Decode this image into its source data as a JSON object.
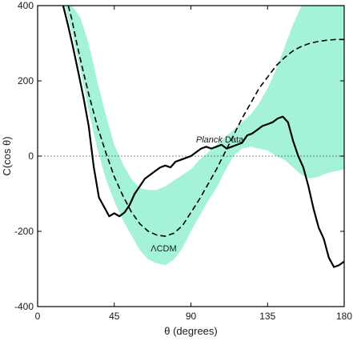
{
  "chart_data": {
    "type": "line",
    "xlabel": "θ (degrees)",
    "ylabel": "C(cos θ)",
    "xlim": [
      0,
      180
    ],
    "ylim": [
      -400,
      400
    ],
    "x_ticks": [
      0,
      45,
      90,
      135,
      180
    ],
    "y_ticks": [
      -400,
      -200,
      0,
      200,
      400
    ],
    "zero_reference_line": true,
    "grid": false,
    "series": [
      {
        "name": "ΛCDM",
        "style": "dashed",
        "color": "#000000",
        "x": [
          18,
          20,
          23,
          26,
          30,
          35,
          40,
          45,
          50,
          55,
          60,
          65,
          70,
          75,
          80,
          85,
          90,
          95,
          100,
          105,
          110,
          115,
          120,
          125,
          130,
          135,
          140,
          145,
          150,
          155,
          160,
          165,
          170,
          175,
          180
        ],
        "y": [
          400,
          365,
          300,
          240,
          165,
          80,
          10,
          -55,
          -105,
          -148,
          -180,
          -200,
          -210,
          -213,
          -205,
          -185,
          -150,
          -115,
          -75,
          -35,
          10,
          55,
          100,
          140,
          180,
          210,
          240,
          262,
          280,
          292,
          300,
          305,
          308,
          310,
          310
        ]
      },
      {
        "name": "Planck Data",
        "style": "solid",
        "color": "#000000",
        "x": [
          15,
          18,
          21,
          24,
          27,
          30,
          33,
          36,
          39,
          42,
          45,
          48,
          51,
          54,
          57,
          60,
          63,
          66,
          69,
          72,
          75,
          78,
          81,
          84,
          87,
          90,
          93,
          96,
          99,
          102,
          105,
          108,
          111,
          114,
          117,
          120,
          123,
          126,
          129,
          132,
          135,
          138,
          141,
          144,
          147,
          150,
          153,
          156,
          159,
          162,
          165,
          168,
          171,
          174,
          177,
          180
        ],
        "y": [
          400,
          345,
          285,
          220,
          155,
          80,
          -30,
          -110,
          -135,
          -160,
          -152,
          -160,
          -150,
          -130,
          -100,
          -80,
          -60,
          -50,
          -40,
          -30,
          -25,
          -30,
          -15,
          -10,
          -5,
          0,
          10,
          20,
          25,
          20,
          25,
          30,
          20,
          25,
          30,
          35,
          55,
          60,
          70,
          80,
          85,
          90,
          100,
          105,
          90,
          40,
          0,
          -30,
          -80,
          -140,
          -190,
          -220,
          -270,
          -295,
          -290,
          -280
        ]
      }
    ],
    "band": {
      "name": "ΛCDM variance",
      "color": "#a5f2db",
      "x": [
        16,
        20,
        25,
        30,
        35,
        40,
        45,
        50,
        55,
        60,
        65,
        70,
        75,
        80,
        85,
        90,
        95,
        100,
        105,
        110,
        115,
        120,
        125,
        130,
        135,
        140,
        145,
        150,
        155,
        160,
        165,
        170,
        175,
        180
      ],
      "upper": [
        400,
        400,
        370,
        300,
        200,
        110,
        30,
        -20,
        -60,
        -85,
        -90,
        -90,
        -80,
        -65,
        -50,
        -35,
        -10,
        10,
        30,
        50,
        70,
        90,
        110,
        140,
        180,
        230,
        290,
        350,
        400,
        400,
        400,
        400,
        400,
        400
      ],
      "lower": [
        400,
        330,
        230,
        120,
        20,
        -60,
        -120,
        -170,
        -210,
        -250,
        -275,
        -285,
        -290,
        -275,
        -245,
        -200,
        -160,
        -120,
        -85,
        -40,
        0,
        20,
        25,
        20,
        15,
        0,
        -10,
        -30,
        -50,
        -60,
        -55,
        -45,
        -40,
        -35
      ]
    },
    "annotations": [
      {
        "text": "ΛCDM",
        "x": 74,
        "y": -245
      },
      {
        "text": "Planck Data",
        "x": 93,
        "y": 45
      }
    ]
  }
}
